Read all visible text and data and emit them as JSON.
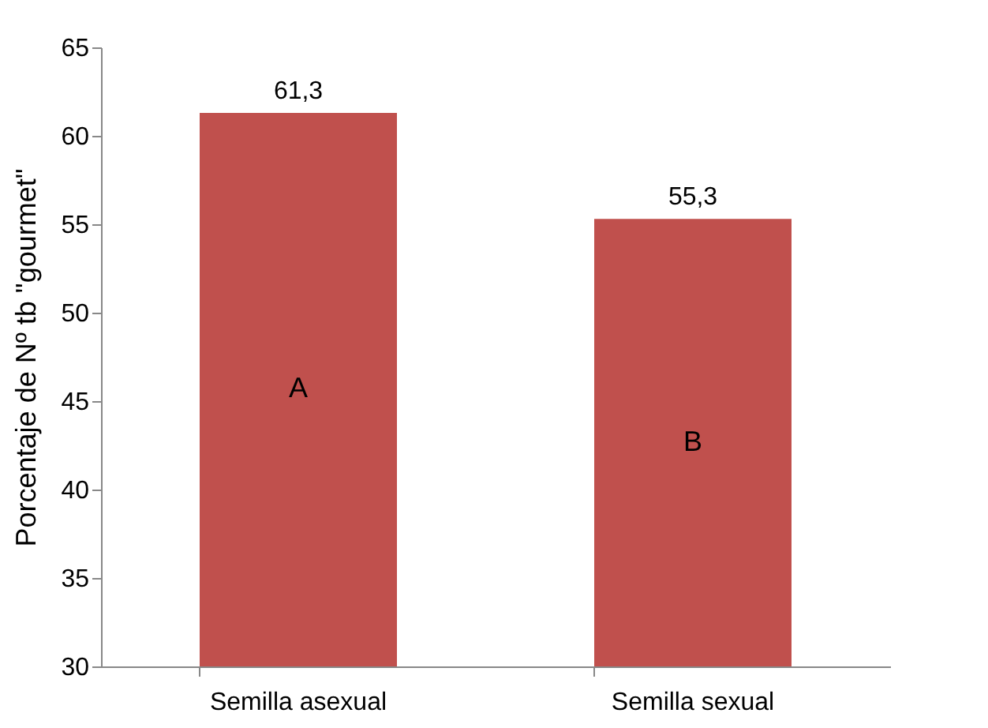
{
  "chart_data": {
    "type": "bar",
    "ylabel": "Porcentaje de Nº tb \"gourmet\"",
    "categories": [
      "Semilla asexual",
      "Semilla sexual"
    ],
    "values": [
      61.3,
      55.3
    ],
    "value_labels": [
      "61,3",
      "55,3"
    ],
    "color": "#c0504d",
    "ylim": [
      30,
      65
    ],
    "yticks": [
      30,
      35,
      40,
      45,
      50,
      55,
      60,
      65
    ],
    "annotations": [
      "A",
      "B"
    ]
  }
}
